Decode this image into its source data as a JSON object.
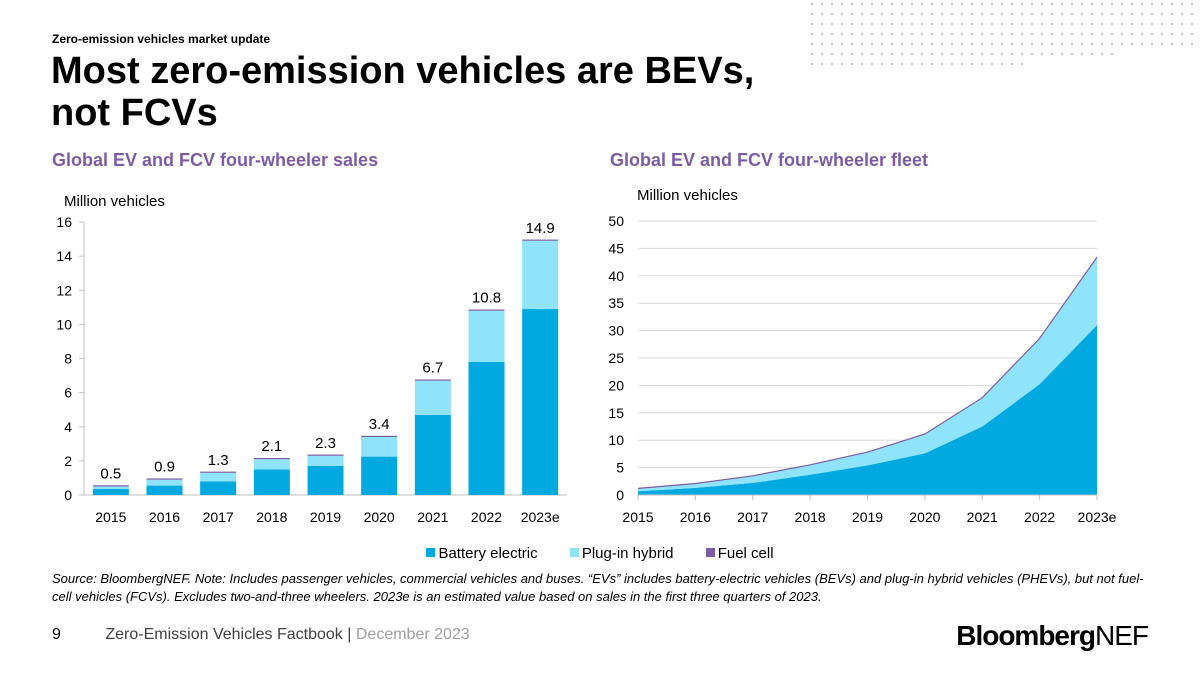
{
  "header": {
    "kicker": "Zero-emission vehicles market update",
    "title_line1": "Most zero-emission vehicles are BEVs,",
    "title_line2": "not FCVs"
  },
  "colors": {
    "battery_electric": "#00a9e0",
    "plug_in_hybrid": "#8fe3fb",
    "fuel_cell": "#7d5ba6",
    "subtitle": "#7d5ba6"
  },
  "legend": {
    "items": [
      {
        "label": "Battery electric",
        "color": "#00a9e0"
      },
      {
        "label": "Plug-in hybrid",
        "color": "#8fe3fb"
      },
      {
        "label": "Fuel cell",
        "color": "#7d5ba6"
      }
    ]
  },
  "chart_data": [
    {
      "type": "bar",
      "stacked": true,
      "title": "Global EV and FCV four-wheeler sales",
      "ylabel": "Million vehicles",
      "categories": [
        "2015",
        "2016",
        "2017",
        "2018",
        "2019",
        "2020",
        "2021",
        "2022",
        "2023e"
      ],
      "ylim": [
        0,
        16
      ],
      "yticks": [
        0,
        2,
        4,
        6,
        8,
        10,
        12,
        14,
        16
      ],
      "series": [
        {
          "name": "Battery electric",
          "values": [
            0.35,
            0.55,
            0.8,
            1.5,
            1.7,
            2.25,
            4.7,
            7.8,
            10.9
          ]
        },
        {
          "name": "Plug-in hybrid",
          "values": [
            0.15,
            0.35,
            0.5,
            0.6,
            0.6,
            1.15,
            2.0,
            3.0,
            4.0
          ]
        },
        {
          "name": "Fuel cell",
          "values": [
            0.0,
            0.0,
            0.0,
            0.01,
            0.01,
            0.01,
            0.02,
            0.02,
            0.02
          ]
        }
      ],
      "totals": [
        0.5,
        0.9,
        1.3,
        2.1,
        2.3,
        3.4,
        6.7,
        10.8,
        14.9
      ],
      "total_labels": [
        "0.5",
        "0.9",
        "1.3",
        "2.1",
        "2.3",
        "3.4",
        "6.7",
        "10.8",
        "14.9"
      ],
      "grid": false
    },
    {
      "type": "area",
      "stacked": true,
      "title": "Global EV and FCV four-wheeler fleet",
      "ylabel": "Million vehicles",
      "categories": [
        "2015",
        "2016",
        "2017",
        "2018",
        "2019",
        "2020",
        "2021",
        "2022",
        "2023e"
      ],
      "ylim": [
        0,
        50
      ],
      "yticks": [
        0,
        5,
        10,
        15,
        20,
        25,
        30,
        35,
        40,
        45,
        50
      ],
      "series": [
        {
          "name": "Battery electric",
          "values": [
            0.7,
            1.3,
            2.2,
            3.7,
            5.4,
            7.6,
            12.5,
            20.2,
            31.0
          ]
        },
        {
          "name": "Plug-in hybrid",
          "values": [
            0.5,
            0.8,
            1.3,
            1.8,
            2.4,
            3.5,
            5.2,
            8.3,
            12.3
          ]
        },
        {
          "name": "Fuel cell",
          "values": [
            0.0,
            0.0,
            0.01,
            0.02,
            0.03,
            0.04,
            0.05,
            0.07,
            0.09
          ]
        }
      ],
      "grid": true
    }
  ],
  "note": "Source: BloombergNEF. Note: Includes passenger vehicles, commercial vehicles and buses. “EVs” includes battery-electric vehicles (BEVs) and plug-in hybrid vehicles (PHEVs), but not fuel-cell vehicles (FCVs). Excludes two-and-three wheelers. 2023e is an estimated value based on sales in the first three quarters of 2023.",
  "footer": {
    "page_number": "9",
    "report": "Zero-Emission Vehicles Factbook",
    "separator": "|",
    "date": "December 2023"
  },
  "logo": {
    "part1": "Bloomberg",
    "part2": "NEF"
  }
}
